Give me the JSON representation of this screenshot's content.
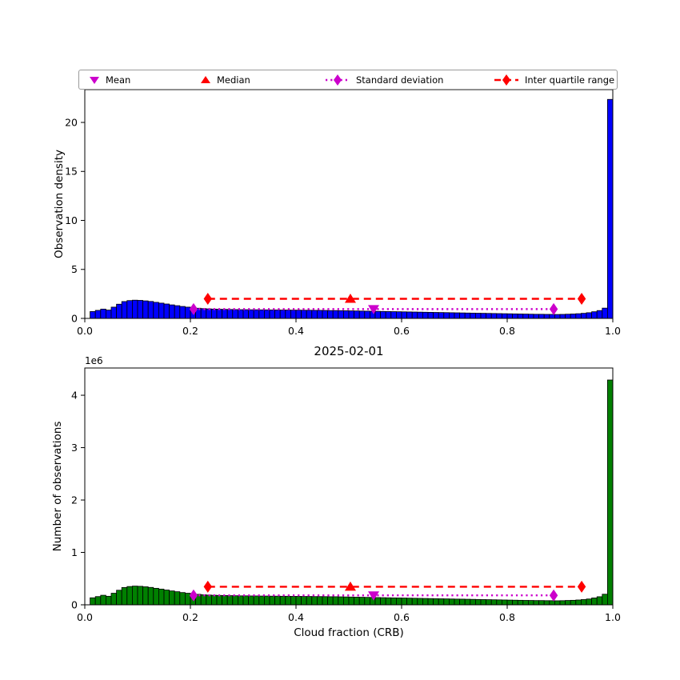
{
  "figure": {
    "title": "2025-02-01",
    "xlabel": "Cloud fraction (CRB)",
    "offset_text": "1e6"
  },
  "legend": {
    "items": [
      {
        "label": "Mean",
        "marker": "triangle-down",
        "color": "#CC00CC"
      },
      {
        "label": "Median",
        "marker": "triangle-up",
        "color": "#FF0000"
      },
      {
        "label": "Standard deviation",
        "marker": "diamond-dotted-line",
        "color": "#CC00CC"
      },
      {
        "label": "Inter quartile range",
        "marker": "diamond-dashed-line",
        "color": "#FF0000"
      }
    ]
  },
  "chart_data": [
    {
      "type": "bar",
      "name": "observation-density-histogram",
      "ylabel": "Observation density",
      "bar_color": "#0000FF",
      "bar_edge_color": "#000000",
      "bin_start": 0.0,
      "bin_width": 0.01,
      "xlim": [
        0.0,
        1.0
      ],
      "ylim": [
        0,
        23.35
      ],
      "xtick_values": [
        0.0,
        0.2,
        0.4,
        0.6,
        0.8,
        1.0
      ],
      "xtick_labels": [
        "0.0",
        "0.2",
        "0.4",
        "0.6",
        "0.8",
        "1.0"
      ],
      "ytick_values": [
        0,
        5,
        10,
        15,
        20
      ],
      "ytick_labels": [
        "0",
        "5",
        "10",
        "15",
        "20"
      ],
      "grid": false,
      "values": [
        0.0,
        0.7,
        0.82,
        0.95,
        0.85,
        1.15,
        1.45,
        1.72,
        1.82,
        1.86,
        1.84,
        1.79,
        1.73,
        1.64,
        1.56,
        1.47,
        1.38,
        1.3,
        1.22,
        1.15,
        1.09,
        1.04,
        1.0,
        0.97,
        0.95,
        0.93,
        0.92,
        0.91,
        0.9,
        0.89,
        0.89,
        0.88,
        0.88,
        0.87,
        0.87,
        0.86,
        0.86,
        0.85,
        0.85,
        0.84,
        0.84,
        0.83,
        0.83,
        0.82,
        0.82,
        0.81,
        0.8,
        0.8,
        0.79,
        0.78,
        0.77,
        0.76,
        0.75,
        0.74,
        0.73,
        0.72,
        0.71,
        0.7,
        0.69,
        0.68,
        0.67,
        0.66,
        0.65,
        0.64,
        0.63,
        0.62,
        0.61,
        0.6,
        0.59,
        0.58,
        0.57,
        0.56,
        0.55,
        0.54,
        0.53,
        0.52,
        0.51,
        0.5,
        0.49,
        0.48,
        0.47,
        0.46,
        0.45,
        0.44,
        0.43,
        0.42,
        0.42,
        0.41,
        0.41,
        0.4,
        0.41,
        0.43,
        0.45,
        0.48,
        0.52,
        0.58,
        0.68,
        0.8,
        1.05,
        22.35
      ],
      "stats": {
        "mean_x": 0.547,
        "median_x": 0.503,
        "std_lo_x": 0.206,
        "std_hi_x": 0.888,
        "q1_x": 0.233,
        "q3_x": 0.941,
        "std_line_y": 0.95,
        "iqr_line_y": 2.0,
        "mean_marker_y": 0.95,
        "median_marker_y": 2.0
      }
    },
    {
      "type": "bar",
      "name": "number-of-observations-histogram",
      "ylabel": "Number of observations",
      "y_offset_label": "1e6",
      "bar_color": "#008000",
      "bar_edge_color": "#000000",
      "bin_start": 0.0,
      "bin_width": 0.01,
      "xlim": [
        0.0,
        1.0
      ],
      "ylim": [
        0,
        4520000
      ],
      "xtick_values": [
        0.0,
        0.2,
        0.4,
        0.6,
        0.8,
        1.0
      ],
      "xtick_labels": [
        "0.0",
        "0.2",
        "0.4",
        "0.6",
        "0.8",
        "1.0"
      ],
      "ytick_values": [
        0,
        1000000,
        2000000,
        3000000,
        4000000
      ],
      "ytick_labels": [
        "0",
        "1",
        "2",
        "3",
        "4"
      ],
      "grid": false,
      "values": [
        0,
        134000,
        157000,
        182000,
        163000,
        221000,
        278000,
        330000,
        349000,
        357000,
        353000,
        344000,
        332000,
        315000,
        300000,
        282000,
        265000,
        250000,
        234000,
        221000,
        209000,
        200000,
        192000,
        186000,
        182000,
        179000,
        177000,
        175000,
        173000,
        171000,
        171000,
        169000,
        169000,
        167000,
        167000,
        165000,
        165000,
        163000,
        163000,
        161000,
        161000,
        159000,
        159000,
        157000,
        157000,
        156000,
        154000,
        154000,
        152000,
        150000,
        148000,
        146000,
        144000,
        142000,
        140000,
        138000,
        136000,
        134000,
        132000,
        131000,
        129000,
        127000,
        125000,
        123000,
        121000,
        119000,
        117000,
        115000,
        113000,
        111000,
        109000,
        108000,
        106000,
        104000,
        102000,
        100000,
        98000,
        96000,
        94000,
        92000,
        90000,
        88000,
        86000,
        84000,
        83000,
        81000,
        81000,
        79000,
        79000,
        77000,
        79000,
        83000,
        86000,
        92000,
        100000,
        111000,
        131000,
        154000,
        202000,
        4291000
      ],
      "stats": {
        "mean_x": 0.547,
        "median_x": 0.503,
        "std_lo_x": 0.206,
        "std_hi_x": 0.888,
        "q1_x": 0.233,
        "q3_x": 0.941,
        "std_line_y": 180000,
        "iqr_line_y": 345000,
        "mean_marker_y": 180000,
        "median_marker_y": 345000
      }
    }
  ],
  "style": {
    "mean_color": "#CC00CC",
    "median_color": "#FF0000",
    "std_color": "#CC00CC",
    "iqr_color": "#FF0000",
    "axis_color": "#000000"
  }
}
